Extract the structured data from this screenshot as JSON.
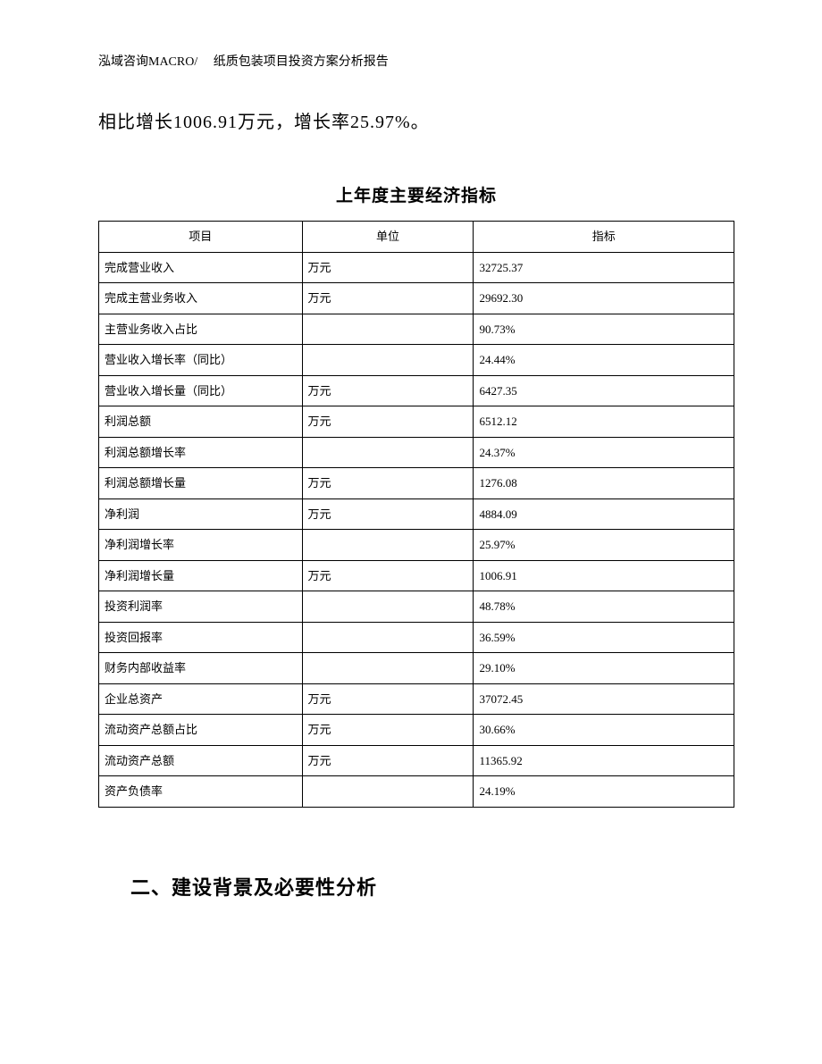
{
  "header": {
    "text": "泓域咨询MACRO/　 纸质包装项目投资方案分析报告"
  },
  "body": {
    "paragraph": "相比增长1006.91万元，增长率25.97%。"
  },
  "table": {
    "title": "上年度主要经济指标",
    "columns": [
      "项目",
      "单位",
      "指标"
    ],
    "col_widths": [
      "32%",
      "27%",
      "41%"
    ],
    "rows": [
      [
        "完成营业收入",
        "万元",
        "32725.37"
      ],
      [
        "完成主营业务收入",
        "万元",
        "29692.30"
      ],
      [
        "主营业务收入占比",
        "",
        "90.73%"
      ],
      [
        "营业收入增长率（同比）",
        "",
        "24.44%"
      ],
      [
        "营业收入增长量（同比）",
        "万元",
        "6427.35"
      ],
      [
        "利润总额",
        "万元",
        "6512.12"
      ],
      [
        "利润总额增长率",
        "",
        "24.37%"
      ],
      [
        "利润总额增长量",
        "万元",
        "1276.08"
      ],
      [
        "净利润",
        "万元",
        "4884.09"
      ],
      [
        "净利润增长率",
        "",
        "25.97%"
      ],
      [
        "净利润增长量",
        "万元",
        "1006.91"
      ],
      [
        "投资利润率",
        "",
        "48.78%"
      ],
      [
        "投资回报率",
        "",
        "36.59%"
      ],
      [
        "财务内部收益率",
        "",
        "29.10%"
      ],
      [
        "企业总资产",
        "万元",
        "37072.45"
      ],
      [
        "流动资产总额占比",
        "万元",
        "30.66%"
      ],
      [
        "流动资产总额",
        "万元",
        "11365.92"
      ],
      [
        "资产负债率",
        "",
        "24.19%"
      ]
    ]
  },
  "section": {
    "heading": "二、建设背景及必要性分析"
  },
  "style": {
    "page_bg": "#ffffff",
    "text_color": "#000000",
    "border_color": "#000000",
    "body_fontsize": 20,
    "header_fontsize": 14,
    "table_title_fontsize": 19,
    "cell_fontsize": 13,
    "section_fontsize": 22
  }
}
